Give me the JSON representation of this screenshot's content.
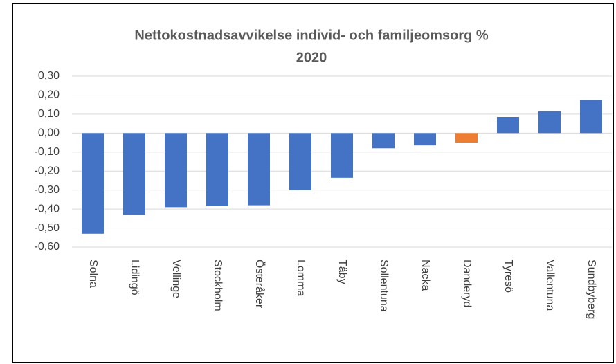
{
  "chart_data": {
    "type": "bar",
    "title": [
      "Nettokostnadsavvikelse individ- och familjeomsorg %",
      "2020"
    ],
    "categories": [
      "Solna",
      "Lidingö",
      "Vellinge",
      "Stockholm",
      "Österåker",
      "Lomma",
      "Täby",
      "Sollentuna",
      "Nacka",
      "Danderyd",
      "Tyresö",
      "Vallentuna",
      "Sundbyberg"
    ],
    "values": [
      -0.53,
      -0.43,
      -0.39,
      -0.385,
      -0.38,
      -0.3,
      -0.235,
      -0.08,
      -0.065,
      -0.05,
      0.085,
      0.115,
      0.175
    ],
    "colors": [
      "#4472c4",
      "#4472c4",
      "#4472c4",
      "#4472c4",
      "#4472c4",
      "#4472c4",
      "#4472c4",
      "#4472c4",
      "#4472c4",
      "#ed7d31",
      "#4472c4",
      "#4472c4",
      "#4472c4"
    ],
    "ylim": [
      -0.6,
      0.3
    ],
    "yticks": [
      {
        "value": -0.6,
        "label": "-0,60"
      },
      {
        "value": -0.5,
        "label": "-0,50"
      },
      {
        "value": -0.4,
        "label": "-0,40"
      },
      {
        "value": -0.3,
        "label": "-0,30"
      },
      {
        "value": -0.2,
        "label": "-0,20"
      },
      {
        "value": -0.1,
        "label": "-0,10"
      },
      {
        "value": 0,
        "label": "0,00"
      },
      {
        "value": 0.1,
        "label": "0,10"
      },
      {
        "value": 0.2,
        "label": "0,20"
      },
      {
        "value": 0.3,
        "label": "0,30"
      }
    ],
    "grid": true
  }
}
